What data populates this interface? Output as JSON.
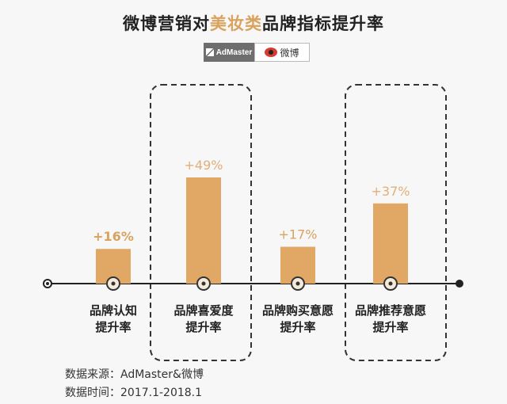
{
  "header": {
    "title_pre": "微博营销对",
    "title_highlight": "美妆类",
    "title_post": "品牌指标提升率",
    "logo_admaster": "AdMaster",
    "logo_weibo": "微博"
  },
  "chart_data": {
    "type": "bar",
    "title": "微博营销对美妆类品牌指标提升率",
    "categories": [
      "品牌认知提升率",
      "品牌喜爱度提升率",
      "品牌购买意愿提升率",
      "品牌推荐意愿提升率"
    ],
    "category_lines": [
      [
        "品牌认知",
        "提升率"
      ],
      [
        "品牌喜爱度",
        "提升率"
      ],
      [
        "品牌购买意愿",
        "提升率"
      ],
      [
        "品牌推荐意愿",
        "提升率"
      ]
    ],
    "values": [
      16,
      49,
      17,
      37
    ],
    "data_labels": [
      "+16%",
      "+49%",
      "+17%",
      "+37%"
    ],
    "highlighted": [
      false,
      true,
      false,
      true
    ],
    "unit": "%",
    "ylim": [
      0,
      60
    ],
    "grid": false,
    "bar_color": "#e0a765",
    "label_color": "#d9a25f",
    "highlight_label_color": "#e0b07a"
  },
  "footer": {
    "source": "数据来源：AdMaster&微博",
    "period": "数据时间：2017.1-2018.1"
  }
}
